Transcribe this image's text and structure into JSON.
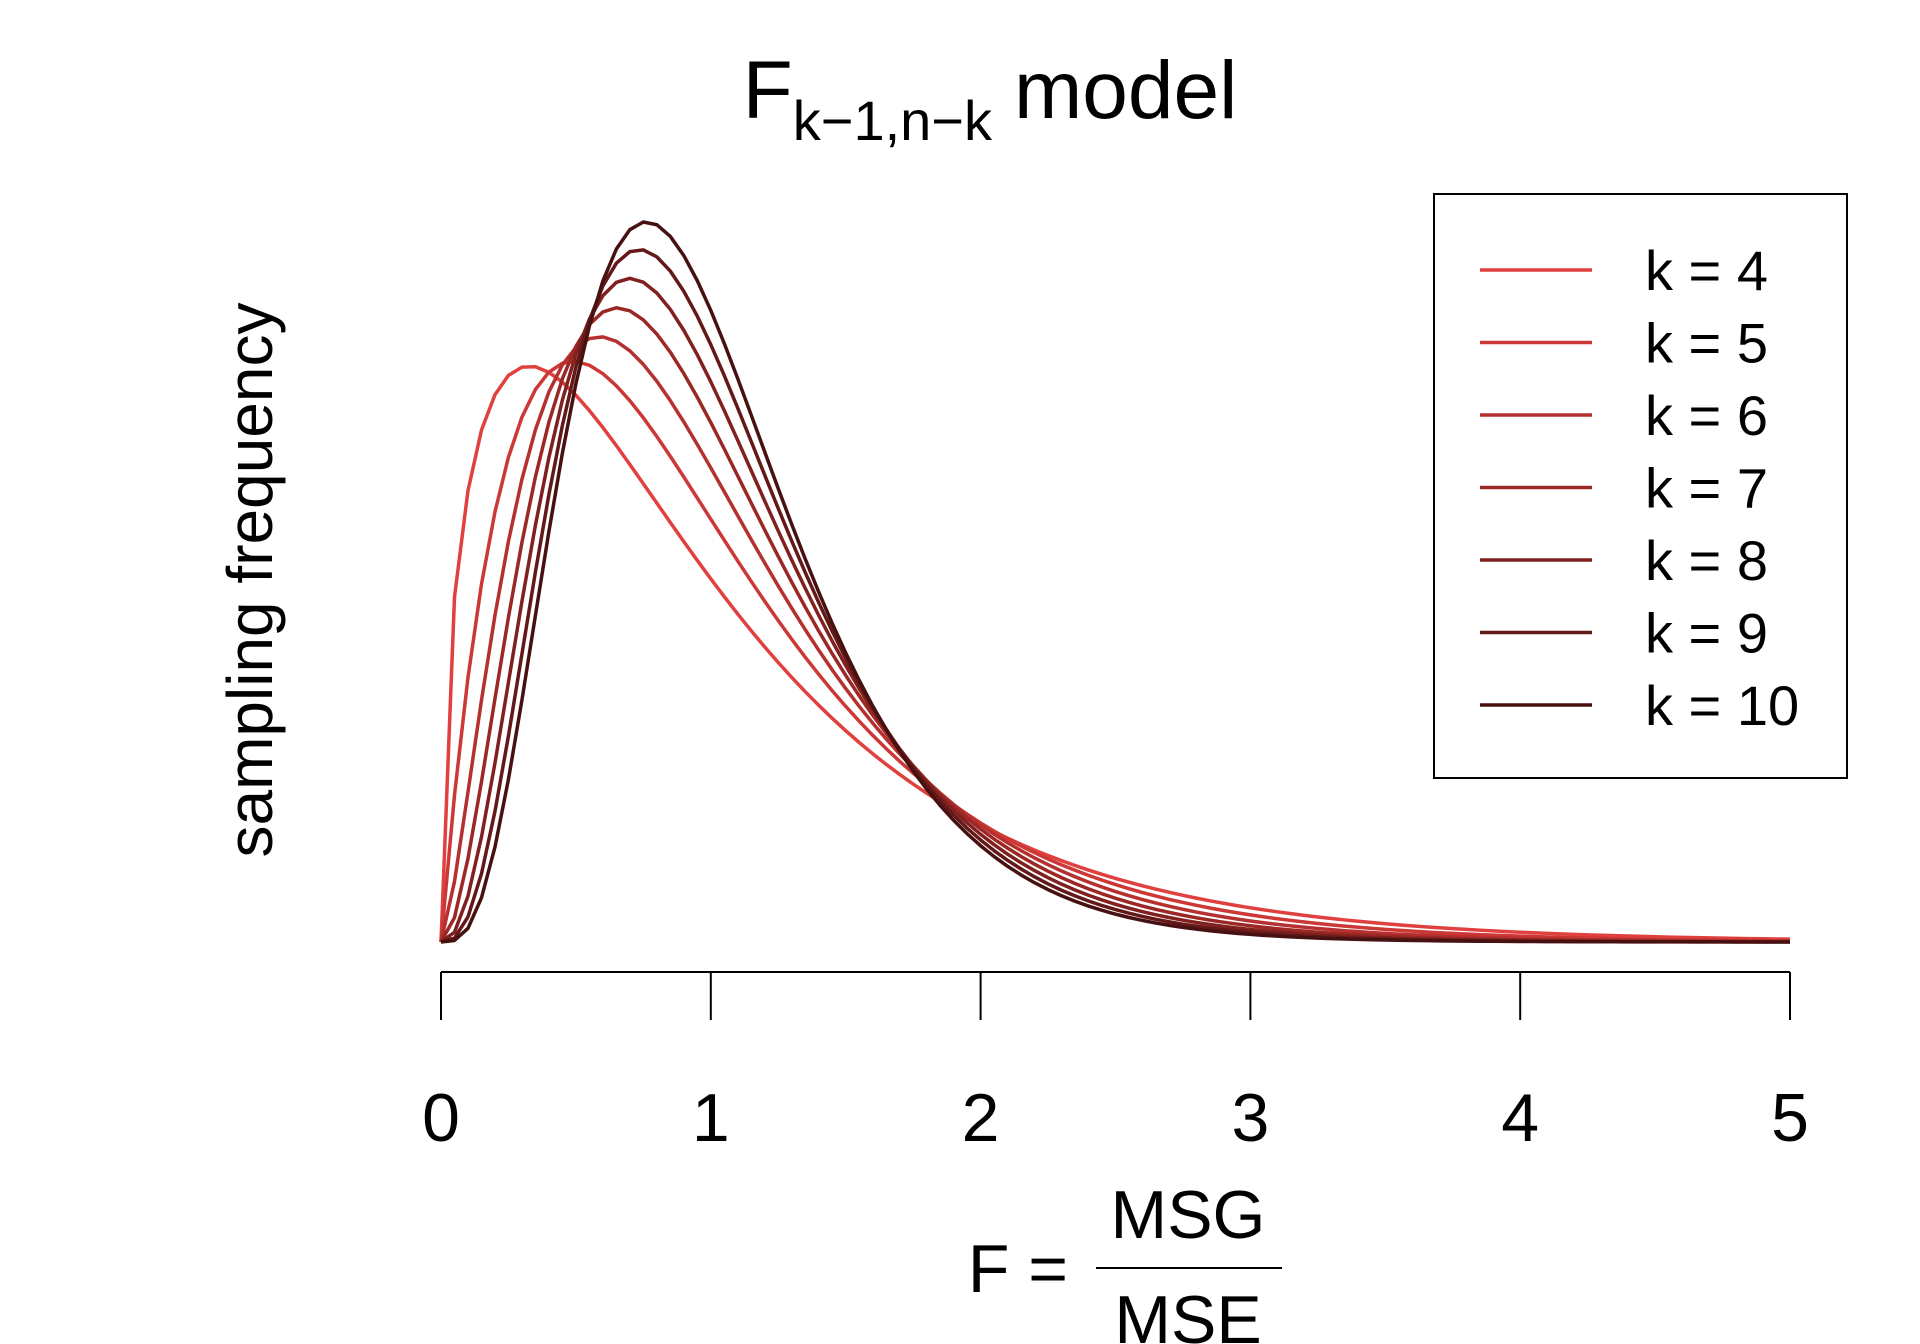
{
  "chart_data": {
    "type": "line",
    "title": {
      "main": "F",
      "subscript": "k−1,n−k",
      "suffix": "model"
    },
    "ylabel": "sampling frequency",
    "xlabel": {
      "prefix": "F =",
      "numerator": "MSG",
      "denominator": "MSE"
    },
    "xlim": [
      0,
      5
    ],
    "x_ticks": [
      "0",
      "1",
      "2",
      "3",
      "4",
      "5"
    ],
    "y_axis_shown": false,
    "grid": false,
    "legend_position": "top-right",
    "n": 100,
    "curve_x_range": [
      0,
      5
    ],
    "series": [
      {
        "name": "k = 4",
        "k": 4,
        "color": "#e0403e"
      },
      {
        "name": "k = 5",
        "k": 5,
        "color": "#cc3836"
      },
      {
        "name": "k = 6",
        "k": 6,
        "color": "#b5302e"
      },
      {
        "name": "k = 7",
        "k": 7,
        "color": "#9c2826"
      },
      {
        "name": "k = 8",
        "k": 8,
        "color": "#80201f"
      },
      {
        "name": "k = 9",
        "k": 9,
        "color": "#641818"
      },
      {
        "name": "k = 10",
        "k": 10,
        "color": "#481111"
      }
    ]
  }
}
